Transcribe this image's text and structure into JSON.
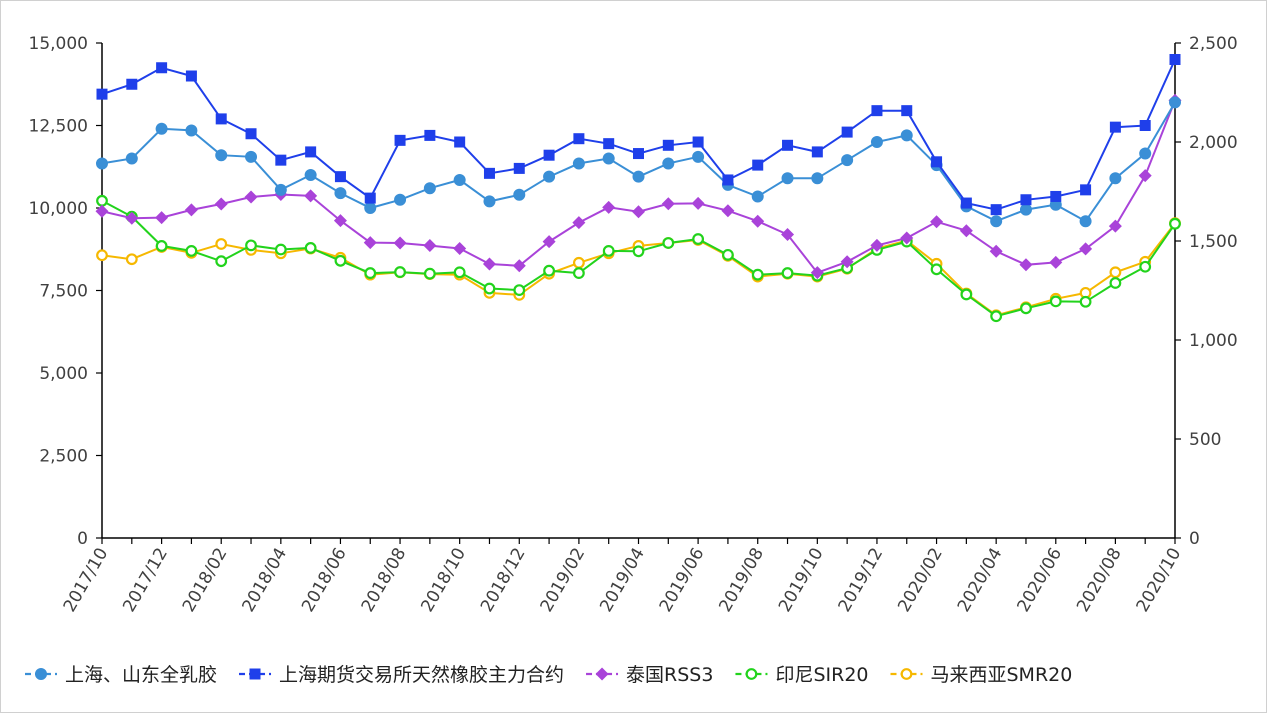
{
  "chart_data": {
    "type": "line",
    "title": "",
    "xlabel": "",
    "ylabel_left": "",
    "ylabel_right": "",
    "ylim_left": [
      0,
      15000
    ],
    "ylim_right": [
      0,
      2500
    ],
    "yticks_left": [
      "0",
      "2,500",
      "5,000",
      "7,500",
      "10,000",
      "12,500",
      "15,000"
    ],
    "yticks_right": [
      "0",
      "500",
      "1,000",
      "1,500",
      "2,000",
      "2,500"
    ],
    "grid": false,
    "legend_position": "bottom",
    "x": [
      "2017/10",
      "2017/11",
      "2017/12",
      "2018/01",
      "2018/02",
      "2018/03",
      "2018/04",
      "2018/05",
      "2018/06",
      "2018/07",
      "2018/08",
      "2018/09",
      "2018/10",
      "2018/11",
      "2018/12",
      "2019/01",
      "2019/02",
      "2019/03",
      "2019/04",
      "2019/05",
      "2019/06",
      "2019/07",
      "2019/08",
      "2019/09",
      "2019/10",
      "2019/11",
      "2019/12",
      "2020/01",
      "2020/02",
      "2020/03",
      "2020/04",
      "2020/05",
      "2020/06",
      "2020/07",
      "2020/08",
      "2020/09",
      "2020/10"
    ],
    "xtick_labels": [
      "2017/10",
      "2017/12",
      "2018/02",
      "2018/04",
      "2018/06",
      "2018/08",
      "2018/10",
      "2018/12",
      "2019/02",
      "2019/04",
      "2019/06",
      "2019/08",
      "2019/10",
      "2019/12",
      "2020/02",
      "2020/04",
      "2020/06",
      "2020/08",
      "2020/10"
    ],
    "series": [
      {
        "name": "上海、山东全乳胶",
        "axis": "left",
        "color": "#3a8fd6",
        "marker": "circle",
        "values": [
          11350,
          11500,
          12400,
          12350,
          11600,
          11550,
          10550,
          11000,
          10450,
          10000,
          10250,
          10600,
          10850,
          10200,
          10400,
          10950,
          11350,
          11500,
          10950,
          11350,
          11550,
          10700,
          10350,
          10900,
          10900,
          11450,
          12000,
          12200,
          11300,
          10050,
          9600,
          9950,
          10100,
          9600,
          10900,
          11650,
          13200
        ]
      },
      {
        "name": "上海期货交易所天然橡胶主力合约",
        "axis": "left",
        "color": "#1f3fea",
        "marker": "square",
        "values": [
          13450,
          13750,
          14250,
          14000,
          12700,
          12250,
          11450,
          11700,
          10950,
          10300,
          12050,
          12200,
          12000,
          11050,
          11200,
          11600,
          12100,
          11950,
          11650,
          11900,
          12000,
          10850,
          11300,
          11900,
          11700,
          12300,
          12950,
          12950,
          11400,
          10150,
          9950,
          10250,
          10350,
          10550,
          12450,
          12500,
          14500
        ]
      },
      {
        "name": "泰国RSS3",
        "axis": "right",
        "color": "#a943d9",
        "marker": "diamond",
        "values": [
          1650,
          1615,
          1618,
          1657,
          1687,
          1722,
          1735,
          1728,
          1603,
          1492,
          1490,
          1477,
          1462,
          1384,
          1375,
          1497,
          1593,
          1670,
          1648,
          1688,
          1690,
          1653,
          1600,
          1533,
          1340,
          1395,
          1478,
          1515,
          1597,
          1552,
          1448,
          1380,
          1392,
          1460,
          1575,
          1830,
          2210
        ]
      },
      {
        "name": "印尼SIR20",
        "axis": "right",
        "color": "#22d31c",
        "marker": "open-circle",
        "values": [
          1703,
          1623,
          1475,
          1450,
          1398,
          1478,
          1457,
          1465,
          1400,
          1338,
          1343,
          1335,
          1342,
          1260,
          1252,
          1350,
          1338,
          1450,
          1448,
          1490,
          1510,
          1430,
          1330,
          1338,
          1325,
          1363,
          1455,
          1497,
          1357,
          1230,
          1120,
          1160,
          1195,
          1193,
          1288,
          1370,
          1587
        ]
      },
      {
        "name": "马来西亚SMR20",
        "axis": "right",
        "color": "#f6b800",
        "marker": "open-circle",
        "values": [
          1428,
          1408,
          1470,
          1440,
          1485,
          1455,
          1438,
          1462,
          1415,
          1330,
          1342,
          1333,
          1330,
          1238,
          1228,
          1335,
          1390,
          1438,
          1475,
          1490,
          1505,
          1425,
          1320,
          1335,
          1320,
          1360,
          1462,
          1502,
          1385,
          1235,
          1125,
          1165,
          1208,
          1238,
          1342,
          1395,
          1590
        ]
      }
    ]
  }
}
